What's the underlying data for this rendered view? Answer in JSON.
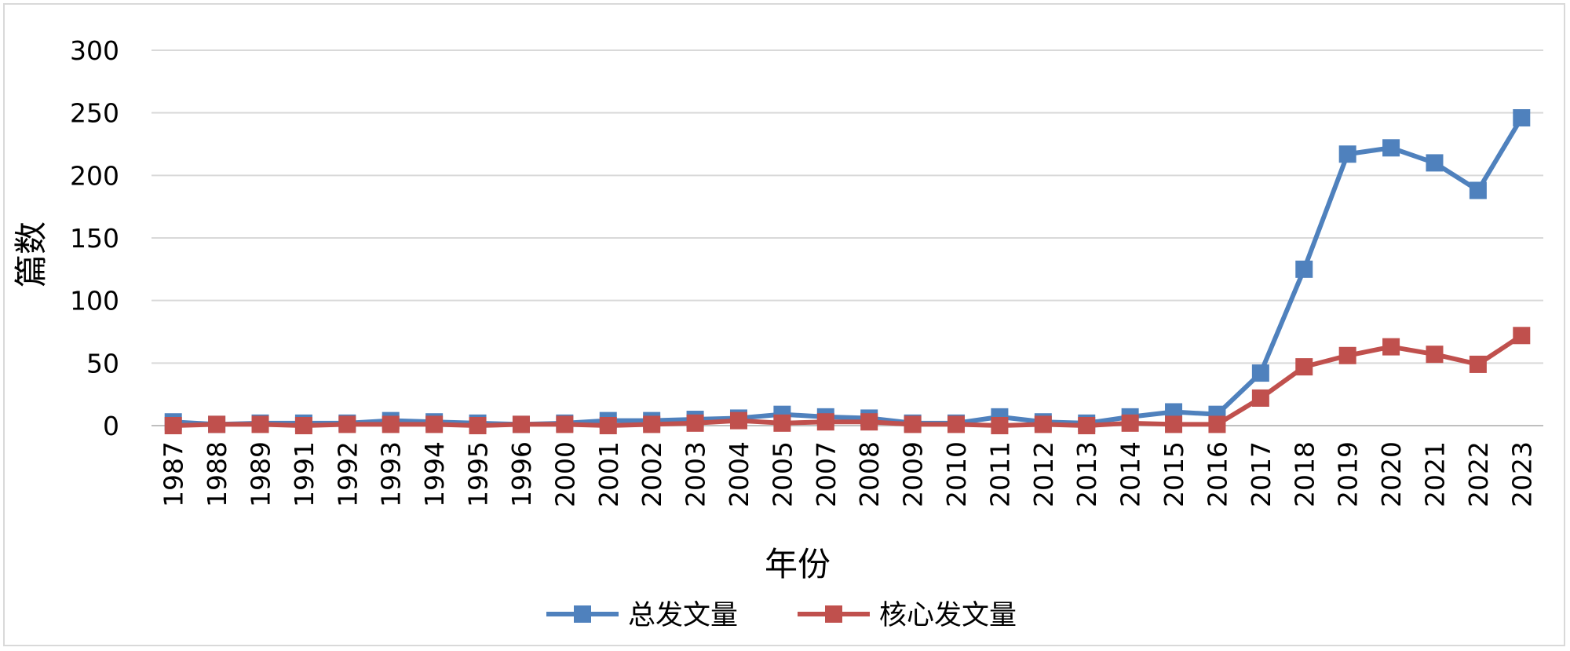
{
  "chart_data": {
    "type": "line",
    "xlabel": "年份",
    "ylabel": "篇数",
    "ylim": [
      0,
      300
    ],
    "yticks": [
      0,
      50,
      100,
      150,
      200,
      250,
      300
    ],
    "grid": true,
    "legend_position": "bottom",
    "categories": [
      "1987",
      "1988",
      "1989",
      "1991",
      "1992",
      "1993",
      "1994",
      "1995",
      "1996",
      "2000",
      "2001",
      "2002",
      "2003",
      "2004",
      "2005",
      "2007",
      "2008",
      "2009",
      "2010",
      "2011",
      "2012",
      "2013",
      "2014",
      "2015",
      "2016",
      "2017",
      "2018",
      "2019",
      "2020",
      "2021",
      "2022",
      "2023"
    ],
    "series": [
      {
        "name": "总发文量",
        "color": "#4f81bd",
        "marker": "square",
        "values": [
          3,
          1,
          2,
          2,
          2,
          4,
          3,
          2,
          1,
          2,
          4,
          4,
          5,
          6,
          9,
          7,
          6,
          2,
          2,
          7,
          3,
          2,
          7,
          11,
          9,
          42,
          125,
          217,
          222,
          210,
          188,
          246
        ]
      },
      {
        "name": "核心发文量",
        "color": "#c0504d",
        "marker": "square",
        "values": [
          0,
          1,
          1,
          0,
          1,
          1,
          1,
          0,
          1,
          1,
          0,
          1,
          2,
          4,
          2,
          3,
          3,
          1,
          1,
          0,
          1,
          0,
          2,
          1,
          1,
          22,
          47,
          56,
          63,
          57,
          49,
          72
        ]
      }
    ]
  }
}
